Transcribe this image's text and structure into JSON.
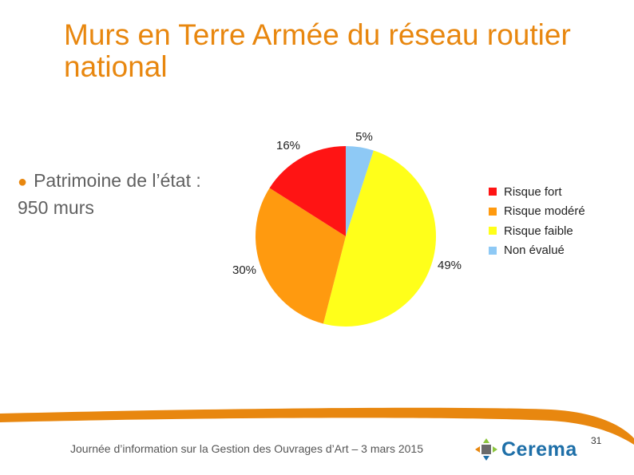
{
  "slide": {
    "title": "Murs en Terre Armée du réseau routier national",
    "bullet_text": "Patrimoine  de l’état : 950 murs",
    "footer_text": "Journée d’information sur la Gestion des Ouvrages d’Art – 3 mars 2015",
    "logo_text": "Cerema",
    "page_number": "31"
  },
  "colors": {
    "title": "#e8870f",
    "footer_band": "#e8870f",
    "logo_text": "#1e6fa8"
  },
  "chart_data": {
    "type": "pie",
    "start_angle_deg": 0,
    "direction": "clockwise",
    "legend_position": "right",
    "slices": [
      {
        "name": "Non évalué",
        "value": 5,
        "label": "5%",
        "color": "#8ec9f5"
      },
      {
        "name": "Risque faible",
        "value": 49,
        "label": "49%",
        "color": "#ffff1a"
      },
      {
        "name": "Risque modéré",
        "value": 30,
        "label": "30%",
        "color": "#ff9a0f"
      },
      {
        "name": "Risque fort",
        "value": 16,
        "label": "16%",
        "color": "#ff1414"
      }
    ],
    "legend": [
      {
        "name": "Risque fort",
        "color": "#ff1414"
      },
      {
        "name": "Risque modéré",
        "color": "#ff9a0f"
      },
      {
        "name": "Risque faible",
        "color": "#ffff1a"
      },
      {
        "name": "Non évalué",
        "color": "#8ec9f5"
      }
    ]
  }
}
